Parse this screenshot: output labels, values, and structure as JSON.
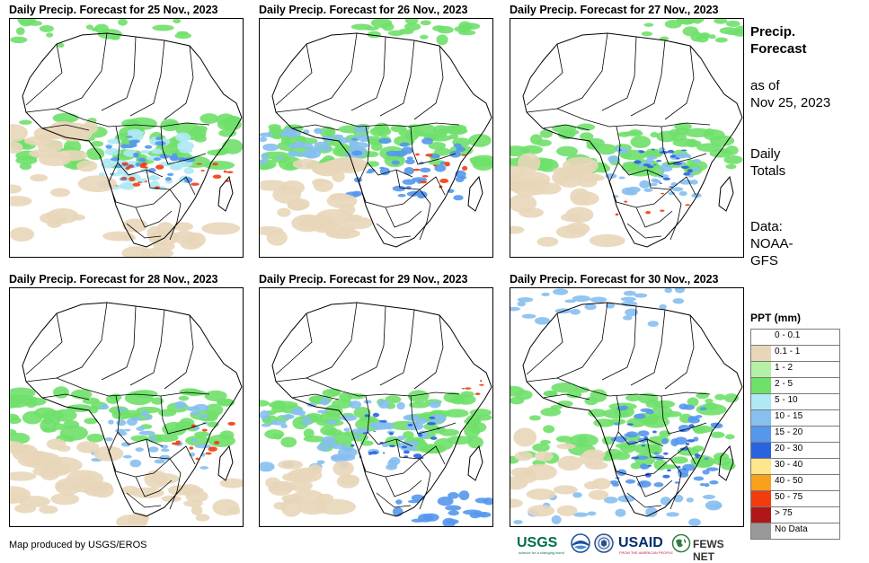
{
  "panels": [
    {
      "title": "Daily Precip. Forecast for 25 Nov., 2023"
    },
    {
      "title": "Daily Precip. Forecast for 26 Nov., 2023"
    },
    {
      "title": "Daily Precip. Forecast for 27 Nov., 2023"
    },
    {
      "title": "Daily Precip. Forecast for 28 Nov., 2023"
    },
    {
      "title": "Daily Precip. Forecast for 29 Nov., 2023"
    },
    {
      "title": "Daily Precip. Forecast for 30 Nov., 2023"
    }
  ],
  "side": {
    "heading1": "Precip.",
    "heading2": "Forecast",
    "asof1": "as of",
    "asof2": "Nov 25, 2023",
    "totals1": "Daily",
    "totals2": "Totals",
    "data1": "Data:",
    "data2": "NOAA-",
    "data3": "GFS"
  },
  "legend": {
    "title": "PPT (mm)",
    "items": [
      {
        "label": "0 - 0.1",
        "color": "#ffffff"
      },
      {
        "label": "0.1 - 1",
        "color": "#e8d6b9"
      },
      {
        "label": "1 - 2",
        "color": "#b4f1a6"
      },
      {
        "label": "2 - 5",
        "color": "#6fe06a"
      },
      {
        "label": "5 - 10",
        "color": "#aee9f4"
      },
      {
        "label": "10 - 15",
        "color": "#86bff0"
      },
      {
        "label": "15 - 20",
        "color": "#5597ec"
      },
      {
        "label": "20 - 30",
        "color": "#2a63e0"
      },
      {
        "label": "30 - 40",
        "color": "#fde68c"
      },
      {
        "label": "40 - 50",
        "color": "#f8a21c"
      },
      {
        "label": "50 - 75",
        "color": "#f23c0f"
      },
      {
        "label": "> 75",
        "color": "#b01818"
      },
      {
        "label": "No Data",
        "color": "#999999"
      }
    ]
  },
  "footer": {
    "credit": "Map produced by USGS/EROS",
    "logo_usgs": "USGS",
    "logo_usgs_tagline": "science for a changing world",
    "logo_usaid": "USAID",
    "logo_usaid_tagline": "FROM THE AMERICAN PEOPLE",
    "logo_fews": "FEWS NET"
  }
}
